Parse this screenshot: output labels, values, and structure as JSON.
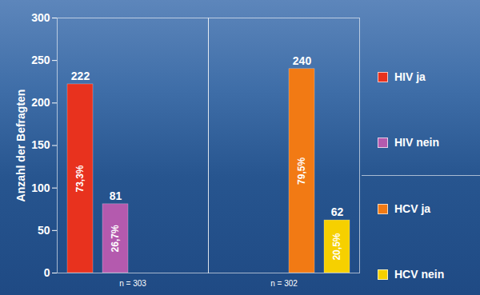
{
  "chart_data": {
    "type": "bar",
    "categories": [
      "n = 303",
      "n = 302"
    ],
    "ylabel": "Anzahl der Befragten",
    "ylim": [
      0,
      300
    ],
    "yticks": [
      0,
      50,
      100,
      150,
      200,
      250,
      300
    ],
    "grid": false,
    "legend": "right",
    "data_labels": true,
    "series": [
      {
        "name": "HIV ja",
        "color": "#e8321e",
        "values": [
          222,
          null
        ],
        "shares": [
          {
            "value": 73.3,
            "label": "73,3%"
          },
          null
        ]
      },
      {
        "name": "HIV nein",
        "color": "#b45aae",
        "values": [
          81,
          null
        ],
        "shares": [
          {
            "value": 26.7,
            "label": "26,7%"
          },
          null
        ]
      },
      {
        "name": "HCV ja",
        "color": "#f27a14",
        "values": [
          null,
          240
        ],
        "shares": [
          null,
          {
            "value": 79.5,
            "label": "79,5%"
          }
        ]
      },
      {
        "name": "HCV nein",
        "color": "#f6d000",
        "values": [
          null,
          62
        ],
        "shares": [
          null,
          {
            "value": 20.5,
            "label": "20,5%"
          }
        ]
      }
    ]
  }
}
